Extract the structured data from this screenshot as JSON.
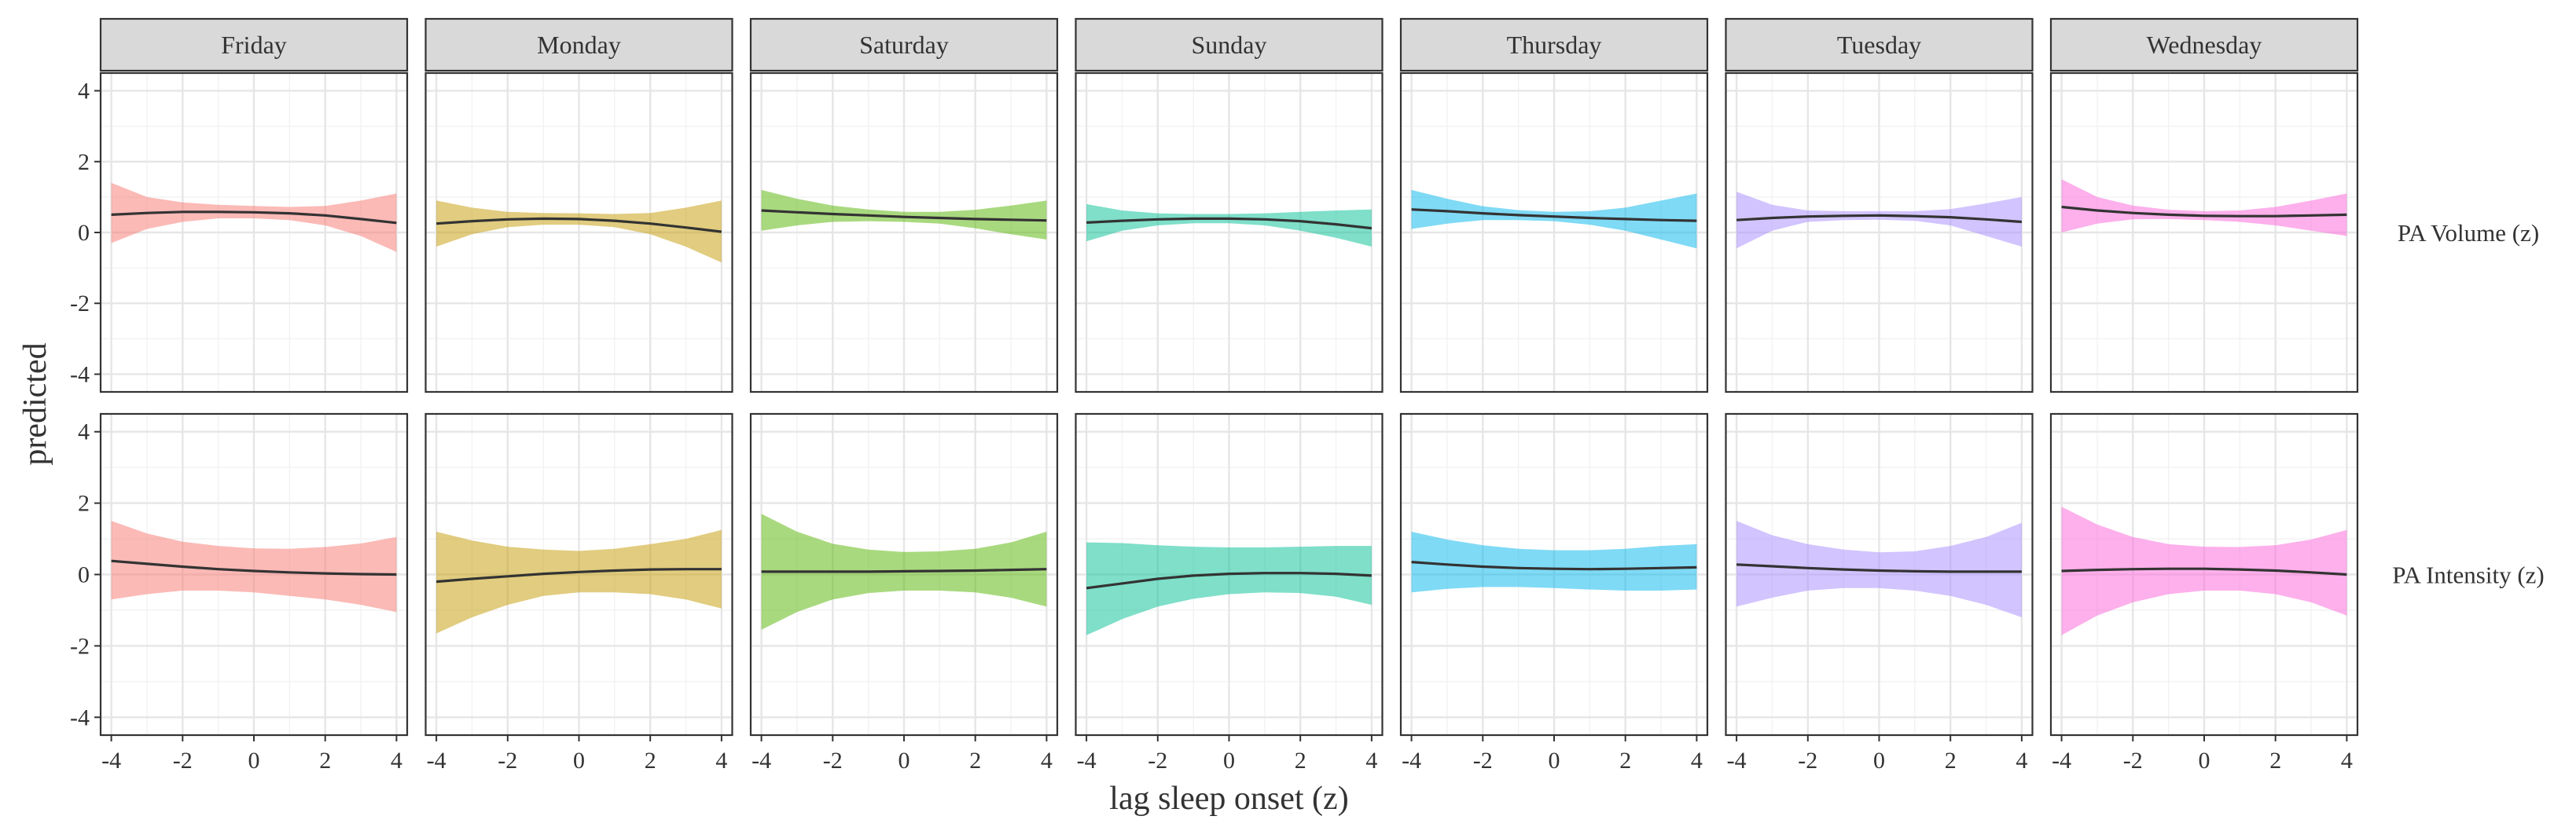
{
  "chart_data": {
    "type": "line",
    "facet_columns": [
      "Friday",
      "Monday",
      "Saturday",
      "Sunday",
      "Thursday",
      "Tuesday",
      "Wednesday"
    ],
    "facet_rows": [
      "PA Volume (z)",
      "PA Intensity (z)"
    ],
    "xlabel": "lag sleep onset (z)",
    "ylabel": "predicted",
    "xlim": [
      -4.3,
      4.3
    ],
    "ylim": [
      -4.5,
      4.5
    ],
    "x_ticks": [
      -4,
      -2,
      0,
      2,
      4
    ],
    "y_ticks": [
      -4,
      -2,
      0,
      2,
      4
    ],
    "x_tick_labels": [
      "-4",
      "-2",
      "0",
      "2",
      "4"
    ],
    "y_tick_labels": [
      "-4",
      "-2",
      "0",
      "2",
      "4"
    ],
    "grid": true,
    "line_color": "#333333",
    "colors": {
      "Friday": "#F8766D",
      "Monday": "#C49A00",
      "Saturday": "#53B400",
      "Sunday": "#00C094",
      "Thursday": "#00B6EB",
      "Tuesday": "#A58AFF",
      "Wednesday": "#FB61D7"
    },
    "x": [
      -4,
      -3,
      -2,
      -1,
      0,
      1,
      2,
      3,
      4
    ],
    "panels": [
      {
        "day": "Friday",
        "outcome": "PA Volume (z)",
        "fit": [
          0.5,
          0.55,
          0.58,
          0.58,
          0.57,
          0.54,
          0.48,
          0.38,
          0.27
        ],
        "lower": [
          -0.3,
          0.1,
          0.3,
          0.4,
          0.4,
          0.35,
          0.2,
          -0.1,
          -0.55
        ],
        "upper": [
          1.4,
          1.0,
          0.85,
          0.78,
          0.75,
          0.72,
          0.75,
          0.9,
          1.1
        ]
      },
      {
        "day": "Monday",
        "outcome": "PA Volume (z)",
        "fit": [
          0.25,
          0.32,
          0.37,
          0.39,
          0.38,
          0.33,
          0.25,
          0.14,
          0.02
        ],
        "lower": [
          -0.4,
          -0.05,
          0.15,
          0.22,
          0.22,
          0.15,
          -0.05,
          -0.4,
          -0.85
        ],
        "upper": [
          0.9,
          0.7,
          0.58,
          0.55,
          0.54,
          0.52,
          0.55,
          0.7,
          0.9
        ]
      },
      {
        "day": "Saturday",
        "outcome": "PA Volume (z)",
        "fit": [
          0.62,
          0.57,
          0.52,
          0.48,
          0.44,
          0.41,
          0.38,
          0.36,
          0.34
        ],
        "lower": [
          0.05,
          0.2,
          0.3,
          0.32,
          0.3,
          0.25,
          0.12,
          -0.05,
          -0.2
        ],
        "upper": [
          1.2,
          0.95,
          0.76,
          0.65,
          0.58,
          0.58,
          0.64,
          0.76,
          0.9
        ]
      },
      {
        "day": "Sunday",
        "outcome": "PA Volume (z)",
        "fit": [
          0.28,
          0.33,
          0.37,
          0.39,
          0.39,
          0.37,
          0.32,
          0.23,
          0.12
        ],
        "lower": [
          -0.25,
          0.05,
          0.2,
          0.26,
          0.26,
          0.2,
          0.05,
          -0.15,
          -0.4
        ],
        "upper": [
          0.8,
          0.62,
          0.54,
          0.52,
          0.52,
          0.54,
          0.58,
          0.62,
          0.65
        ]
      },
      {
        "day": "Thursday",
        "outcome": "PA Volume (z)",
        "fit": [
          0.65,
          0.6,
          0.54,
          0.49,
          0.45,
          0.41,
          0.38,
          0.35,
          0.33
        ],
        "lower": [
          0.1,
          0.25,
          0.35,
          0.35,
          0.32,
          0.22,
          0.05,
          -0.2,
          -0.45
        ],
        "upper": [
          1.2,
          0.95,
          0.74,
          0.63,
          0.58,
          0.6,
          0.7,
          0.9,
          1.1
        ]
      },
      {
        "day": "Tuesday",
        "outcome": "PA Volume (z)",
        "fit": [
          0.35,
          0.41,
          0.45,
          0.47,
          0.48,
          0.46,
          0.43,
          0.37,
          0.3
        ],
        "lower": [
          -0.45,
          0.05,
          0.3,
          0.35,
          0.36,
          0.33,
          0.2,
          -0.1,
          -0.4
        ],
        "upper": [
          1.15,
          0.78,
          0.62,
          0.6,
          0.6,
          0.6,
          0.66,
          0.82,
          1.0
        ]
      },
      {
        "day": "Wednesday",
        "outcome": "PA Volume (z)",
        "fit": [
          0.72,
          0.62,
          0.55,
          0.5,
          0.47,
          0.46,
          0.46,
          0.48,
          0.5
        ],
        "lower": [
          0.0,
          0.25,
          0.37,
          0.38,
          0.35,
          0.3,
          0.2,
          0.05,
          -0.1
        ],
        "upper": [
          1.5,
          1.0,
          0.76,
          0.64,
          0.6,
          0.62,
          0.72,
          0.9,
          1.1
        ]
      },
      {
        "day": "Friday",
        "outcome": "PA Intensity (z)",
        "fit": [
          0.38,
          0.3,
          0.22,
          0.15,
          0.1,
          0.06,
          0.03,
          0.01,
          0.0
        ],
        "lower": [
          -0.7,
          -0.55,
          -0.45,
          -0.45,
          -0.5,
          -0.6,
          -0.7,
          -0.85,
          -1.05
        ],
        "upper": [
          1.5,
          1.15,
          0.92,
          0.8,
          0.73,
          0.72,
          0.77,
          0.87,
          1.05
        ]
      },
      {
        "day": "Monday",
        "outcome": "PA Intensity (z)",
        "fit": [
          -0.2,
          -0.12,
          -0.05,
          0.02,
          0.07,
          0.11,
          0.14,
          0.15,
          0.15
        ],
        "lower": [
          -1.65,
          -1.2,
          -0.85,
          -0.6,
          -0.5,
          -0.5,
          -0.55,
          -0.7,
          -0.95
        ],
        "upper": [
          1.2,
          0.95,
          0.78,
          0.7,
          0.66,
          0.72,
          0.85,
          1.0,
          1.25
        ]
      },
      {
        "day": "Saturday",
        "outcome": "PA Intensity (z)",
        "fit": [
          0.08,
          0.08,
          0.08,
          0.08,
          0.09,
          0.1,
          0.11,
          0.13,
          0.15
        ],
        "lower": [
          -1.55,
          -1.05,
          -0.7,
          -0.52,
          -0.45,
          -0.45,
          -0.5,
          -0.65,
          -0.9
        ],
        "upper": [
          1.7,
          1.2,
          0.86,
          0.7,
          0.63,
          0.65,
          0.72,
          0.9,
          1.2
        ]
      },
      {
        "day": "Sunday",
        "outcome": "PA Intensity (z)",
        "fit": [
          -0.38,
          -0.25,
          -0.12,
          -0.03,
          0.02,
          0.04,
          0.04,
          0.02,
          -0.03
        ],
        "lower": [
          -1.7,
          -1.25,
          -0.9,
          -0.68,
          -0.55,
          -0.5,
          -0.52,
          -0.62,
          -0.85
        ],
        "upper": [
          0.9,
          0.88,
          0.82,
          0.78,
          0.76,
          0.76,
          0.78,
          0.8,
          0.8
        ]
      },
      {
        "day": "Thursday",
        "outcome": "PA Intensity (z)",
        "fit": [
          0.35,
          0.28,
          0.22,
          0.18,
          0.16,
          0.15,
          0.16,
          0.18,
          0.2
        ],
        "lower": [
          -0.5,
          -0.4,
          -0.35,
          -0.35,
          -0.38,
          -0.42,
          -0.45,
          -0.45,
          -0.42
        ],
        "upper": [
          1.2,
          0.98,
          0.82,
          0.72,
          0.68,
          0.68,
          0.72,
          0.8,
          0.85
        ]
      },
      {
        "day": "Tuesday",
        "outcome": "PA Intensity (z)",
        "fit": [
          0.28,
          0.23,
          0.18,
          0.14,
          0.11,
          0.09,
          0.08,
          0.08,
          0.08
        ],
        "lower": [
          -0.9,
          -0.65,
          -0.45,
          -0.38,
          -0.38,
          -0.45,
          -0.6,
          -0.85,
          -1.2
        ],
        "upper": [
          1.5,
          1.1,
          0.85,
          0.7,
          0.62,
          0.65,
          0.8,
          1.05,
          1.45
        ]
      },
      {
        "day": "Wednesday",
        "outcome": "PA Intensity (z)",
        "fit": [
          0.1,
          0.13,
          0.15,
          0.16,
          0.16,
          0.14,
          0.11,
          0.06,
          0.0
        ],
        "lower": [
          -1.7,
          -1.15,
          -0.78,
          -0.55,
          -0.45,
          -0.45,
          -0.55,
          -0.78,
          -1.15
        ],
        "upper": [
          1.9,
          1.4,
          1.05,
          0.85,
          0.78,
          0.77,
          0.82,
          0.98,
          1.25
        ]
      }
    ]
  }
}
